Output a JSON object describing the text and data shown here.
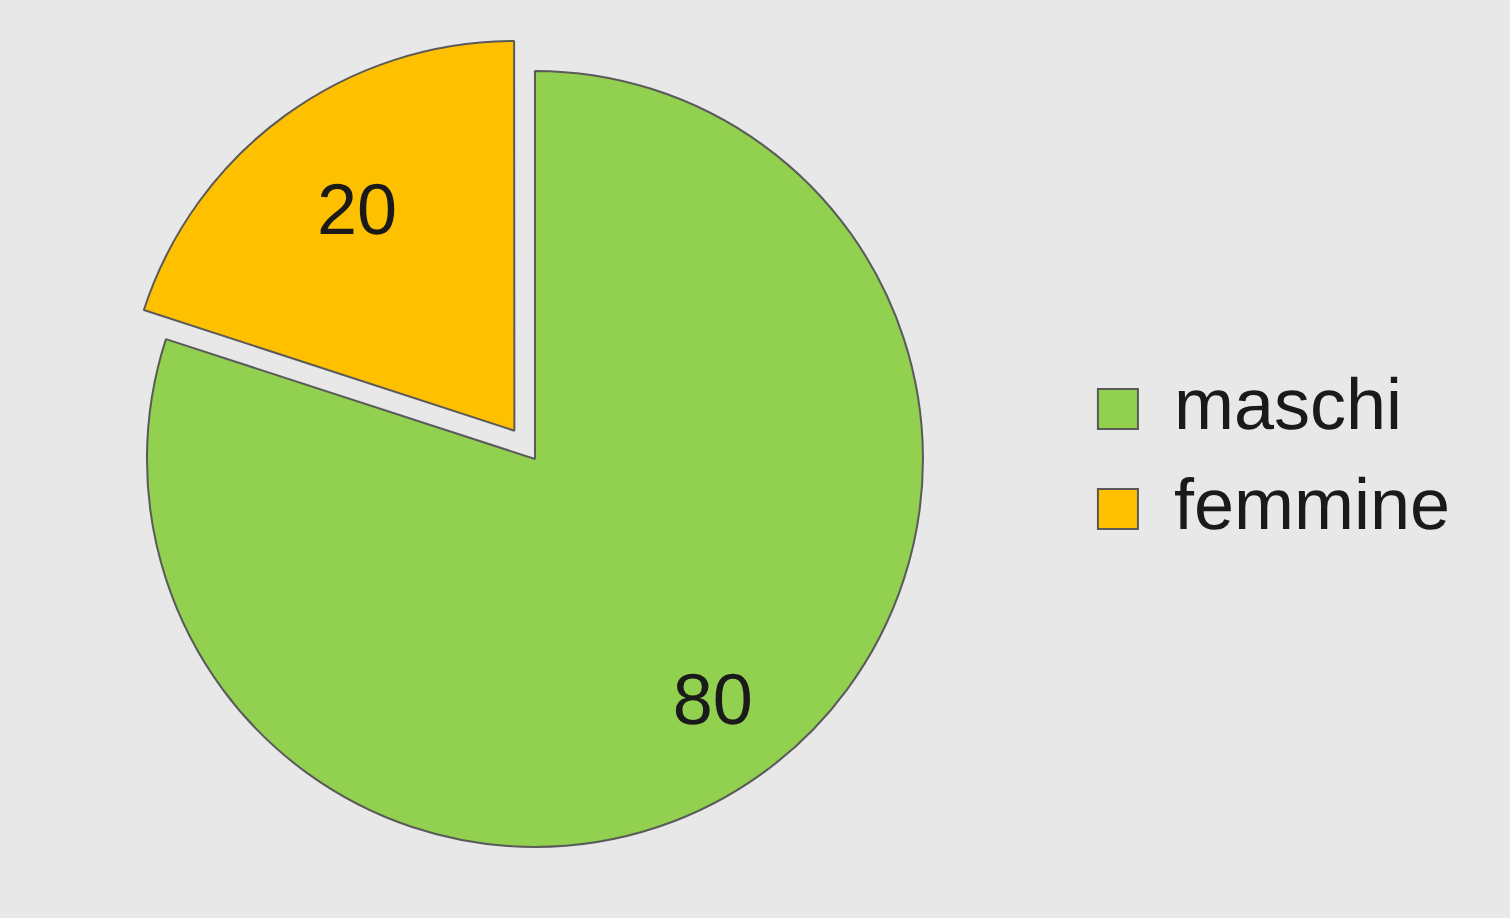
{
  "chart_data": {
    "type": "pie",
    "categories": [
      "maschi",
      "femmine"
    ],
    "values": [
      80,
      20
    ],
    "colors": [
      "#92d050",
      "#ffc000"
    ],
    "data_labels": true,
    "legend": "right"
  }
}
